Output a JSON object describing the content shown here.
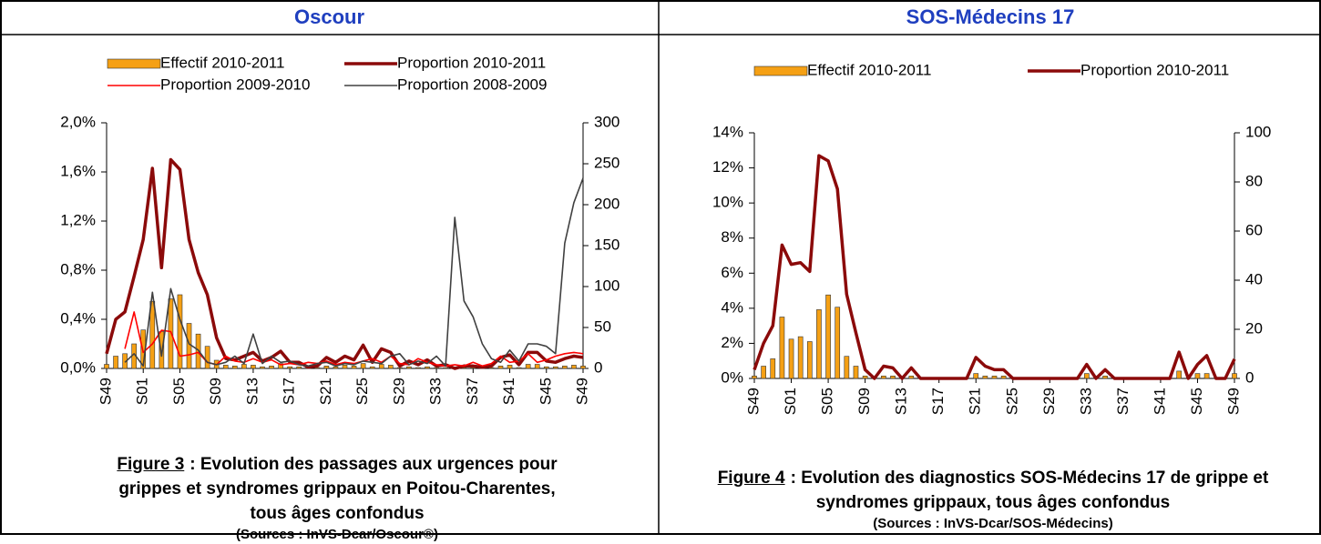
{
  "panels": [
    {
      "title": "Oscour",
      "figure": "Figure 3",
      "caption": ": Evolution des passages aux urgences pour grippes et syndromes grippaux en Poitou-Charentes, tous âges confondus",
      "source": "(Sources : InVS-Dcar/Oscour®)"
    },
    {
      "title": "SOS-Médecins 17",
      "figure": "Figure 4",
      "caption": ": Evolution des diagnostics SOS-Médecins 17 de grippe et syndromes grippaux, tous âges confondus",
      "source": "(Sources : InVS-Dcar/SOS-Médecins)"
    }
  ],
  "chart_data": [
    {
      "type": "bar-line",
      "categories": [
        "S49",
        null,
        null,
        null,
        "S01",
        null,
        null,
        null,
        "S05",
        null,
        null,
        null,
        "S09",
        null,
        null,
        null,
        "S13",
        null,
        null,
        null,
        "S17",
        null,
        null,
        null,
        "S21",
        null,
        null,
        null,
        "S25",
        null,
        null,
        null,
        "S29",
        null,
        null,
        null,
        "S33",
        null,
        null,
        null,
        "S37",
        null,
        null,
        null,
        "S41",
        null,
        null,
        null,
        "S45",
        null,
        null,
        null,
        "S49"
      ],
      "ylim": [
        0,
        2
      ],
      "yticks": [
        {
          "value": 0,
          "label": "0,0%"
        },
        {
          "value": 0.4,
          "label": "0,4%"
        },
        {
          "value": 0.8,
          "label": "0,8%"
        },
        {
          "value": 1.2,
          "label": "1,2%"
        },
        {
          "value": 1.6,
          "label": "1,6%"
        },
        {
          "value": 2,
          "label": "2,0%"
        }
      ],
      "y2lim": [
        0,
        300
      ],
      "y2ticks": [
        0,
        50,
        100,
        150,
        200,
        250,
        300
      ],
      "series": [
        {
          "name": "Effectif 2010-2011",
          "type": "bar",
          "axis": "y2",
          "color": "#f5a014",
          "values": [
            5,
            15,
            18,
            30,
            47,
            82,
            45,
            85,
            90,
            55,
            42,
            27,
            10,
            4,
            3,
            5,
            4,
            2,
            3,
            6,
            2,
            2,
            1,
            1,
            3,
            2,
            4,
            3,
            6,
            2,
            5,
            4,
            1,
            2,
            1,
            2,
            1,
            1,
            0,
            1,
            1,
            1,
            1,
            3,
            4,
            1,
            5,
            5,
            2,
            2,
            3,
            4,
            3
          ]
        },
        {
          "name": "Proportion 2010-2011",
          "type": "line",
          "color": "#8b0a0a",
          "values": [
            0.12,
            0.4,
            0.46,
            0.75,
            1.05,
            1.63,
            0.82,
            1.7,
            1.62,
            1.05,
            0.78,
            0.6,
            0.25,
            0.08,
            0.07,
            0.1,
            0.13,
            0.06,
            0.09,
            0.14,
            0.05,
            0.05,
            0.01,
            0.02,
            0.09,
            0.05,
            0.1,
            0.07,
            0.19,
            0.05,
            0.16,
            0.13,
            0.02,
            0.06,
            0.03,
            0.07,
            0.02,
            0.03,
            0.0,
            0.02,
            0.02,
            0.01,
            0.02,
            0.09,
            0.11,
            0.03,
            0.13,
            0.13,
            0.06,
            0.05,
            0.08,
            0.1,
            0.09
          ]
        },
        {
          "name": "Proportion 2009-2010",
          "type": "line",
          "color": "#ff0000",
          "values": [
            null,
            null,
            0.16,
            0.46,
            0.13,
            0.2,
            0.31,
            0.3,
            0.1,
            0.11,
            0.13,
            0.05,
            0.03,
            0.1,
            0.06,
            0.05,
            0.08,
            0.05,
            0.07,
            0.03,
            0.04,
            0.03,
            0.05,
            0.04,
            0.06,
            0.03,
            0.05,
            0.04,
            0.06,
            0.08,
            0.05,
            0.1,
            0.04,
            0.03,
            0.08,
            0.05,
            0.03,
            0.02,
            0.03,
            0.02,
            0.05,
            0.02,
            0.04,
            0.1,
            0.05,
            0.06,
            0.12,
            0.05,
            0.07,
            0.1,
            0.12,
            0.13,
            0.12
          ]
        },
        {
          "name": "Proportion 2008-2009",
          "type": "line",
          "color": "#404040",
          "values": [
            null,
            null,
            0.05,
            0.12,
            0.02,
            0.62,
            0.1,
            0.65,
            0.4,
            0.2,
            0.15,
            0.05,
            0.03,
            0.05,
            0.1,
            0.04,
            0.28,
            0.04,
            0.1,
            0.05,
            0.06,
            0.03,
            0.02,
            0.04,
            0.05,
            0.02,
            0.04,
            0.03,
            0.06,
            0.05,
            0.04,
            0.1,
            0.12,
            0.03,
            0.06,
            0.04,
            0.1,
            0.02,
            1.23,
            0.55,
            0.42,
            0.2,
            0.08,
            0.05,
            0.15,
            0.06,
            0.2,
            0.2,
            0.18,
            0.12,
            1.02,
            1.35,
            1.55
          ]
        }
      ]
    },
    {
      "type": "bar-line",
      "categories": [
        "S49",
        null,
        null,
        null,
        "S01",
        null,
        null,
        null,
        "S05",
        null,
        null,
        null,
        "S09",
        null,
        null,
        null,
        "S13",
        null,
        null,
        null,
        "S17",
        null,
        null,
        null,
        "S21",
        null,
        null,
        null,
        "S25",
        null,
        null,
        null,
        "S29",
        null,
        null,
        null,
        "S33",
        null,
        null,
        null,
        "S37",
        null,
        null,
        null,
        "S41",
        null,
        null,
        null,
        "S45",
        null,
        null,
        null,
        "S49"
      ],
      "ylim": [
        0,
        14
      ],
      "yticks": [
        {
          "value": 0,
          "label": "0%"
        },
        {
          "value": 2,
          "label": "2%"
        },
        {
          "value": 4,
          "label": "4%"
        },
        {
          "value": 6,
          "label": "6%"
        },
        {
          "value": 8,
          "label": "8%"
        },
        {
          "value": 10,
          "label": "10%"
        },
        {
          "value": 12,
          "label": "12%"
        },
        {
          "value": 14,
          "label": "14%"
        }
      ],
      "y2lim": [
        0,
        100
      ],
      "y2ticks": [
        0,
        20,
        40,
        60,
        80,
        100
      ],
      "series": [
        {
          "name": "Effectif 2010-2011",
          "type": "bar",
          "axis": "y2",
          "color": "#f5a014",
          "values": [
            1,
            5,
            8,
            25,
            16,
            17,
            15,
            28,
            34,
            29,
            9,
            5,
            1,
            0,
            1,
            1,
            0,
            1,
            0,
            0,
            0,
            0,
            0,
            0,
            2,
            1,
            1,
            1,
            0,
            0,
            0,
            0,
            0,
            0,
            0,
            0,
            2,
            0,
            1,
            0,
            0,
            0,
            0,
            0,
            0,
            0,
            3,
            0,
            2,
            2,
            0,
            0,
            2
          ]
        },
        {
          "name": "Proportion 2010-2011",
          "type": "line",
          "color": "#8b0a0a",
          "values": [
            0.5,
            2.0,
            3.0,
            7.6,
            6.5,
            6.6,
            6.1,
            12.7,
            12.4,
            10.8,
            4.8,
            2.6,
            0.5,
            0,
            0.7,
            0.6,
            0,
            0.6,
            0,
            0,
            0,
            0,
            0,
            0,
            1.2,
            0.7,
            0.5,
            0.5,
            0,
            0,
            0,
            0,
            0,
            0,
            0,
            0,
            0.8,
            0,
            0.5,
            0,
            0,
            0,
            0,
            0,
            0,
            0,
            1.5,
            0,
            0.8,
            1.3,
            0,
            0,
            1.1
          ]
        }
      ]
    }
  ]
}
